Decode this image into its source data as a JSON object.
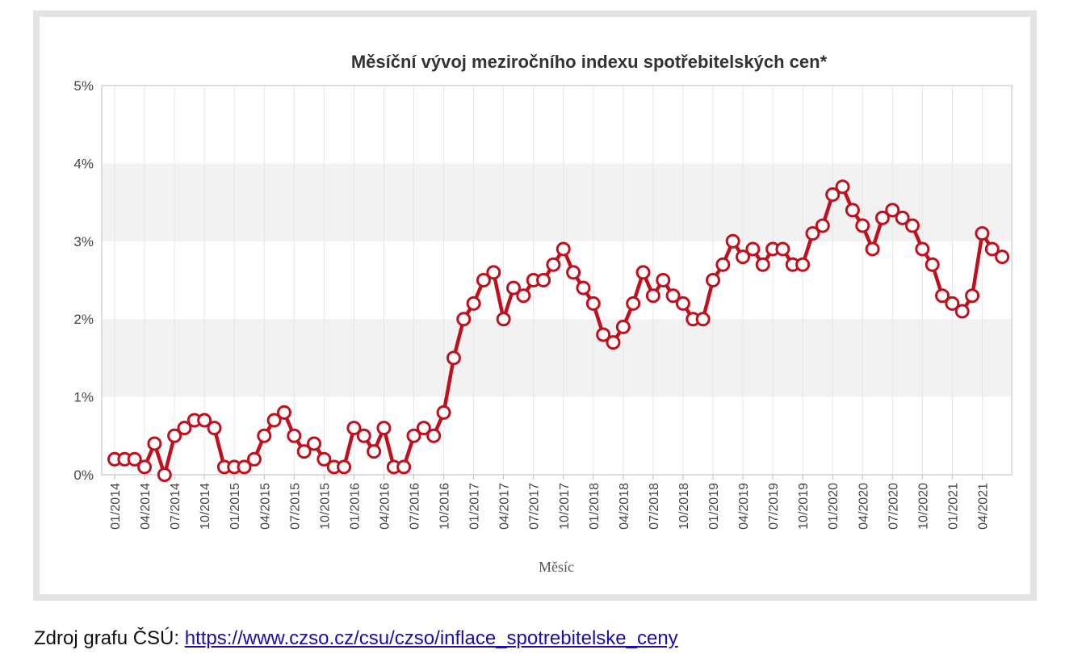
{
  "chart_data": {
    "type": "line",
    "title": "Měsíční vývoj meziročního indexu spotřebitelských cen*",
    "xlabel": "Měsíc",
    "ylabel": "",
    "ylim": [
      0,
      5
    ],
    "y_ticks": [
      "0%",
      "1%",
      "2%",
      "3%",
      "4%",
      "5%"
    ],
    "x_tick_labels": [
      "01/2014",
      "04/2014",
      "07/2014",
      "10/2014",
      "01/2015",
      "04/2015",
      "07/2015",
      "10/2015",
      "01/2016",
      "04/2016",
      "07/2016",
      "10/2016",
      "01/2017",
      "04/2017",
      "07/2017",
      "10/2017",
      "01/2018",
      "04/2018",
      "07/2018",
      "10/2018",
      "01/2019",
      "04/2019",
      "07/2019",
      "10/2019",
      "01/2020",
      "04/2020",
      "07/2020",
      "10/2020",
      "01/2021",
      "04/2021"
    ],
    "legend": "none",
    "grid": "alternating horizontal bands, vertical lines at quarterly ticks",
    "colors": {
      "line": "#c0101e",
      "marker_fill": "#ffffff",
      "band": "#f2f2f2"
    },
    "series": [
      {
        "start": "01/2014",
        "values": [
          0.2,
          0.2,
          0.2,
          0.1,
          0.4,
          0.0,
          0.5,
          0.6,
          0.7,
          0.7,
          0.6,
          0.1,
          0.1,
          0.1,
          0.2,
          0.5,
          0.7,
          0.8,
          0.5,
          0.3,
          0.4,
          0.2,
          0.1,
          0.1,
          0.6,
          0.5,
          0.3,
          0.6,
          0.1,
          0.1,
          0.5,
          0.6,
          0.5,
          0.8,
          1.5,
          2.0,
          2.2,
          2.5,
          2.6,
          2.0,
          2.4,
          2.3,
          2.5,
          2.5,
          2.7,
          2.9,
          2.6,
          2.4,
          2.2,
          1.8,
          1.7,
          1.9,
          2.2,
          2.6,
          2.3,
          2.5,
          2.3,
          2.2,
          2.0,
          2.0,
          2.5,
          2.7,
          3.0,
          2.8,
          2.9,
          2.7,
          2.9,
          2.9,
          2.7,
          2.7,
          3.1,
          3.2,
          3.6,
          3.7,
          3.4,
          3.2,
          2.9,
          3.3,
          3.4,
          3.3,
          3.2,
          2.9,
          2.7,
          2.3,
          2.2,
          2.1,
          2.3,
          3.1,
          2.9,
          2.8
        ]
      }
    ]
  },
  "source": {
    "prefix": "Zdroj grafu ČSÚ: ",
    "link_text": "https://www.czso.cz/csu/czso/inflace_spotrebitelske_ceny"
  }
}
